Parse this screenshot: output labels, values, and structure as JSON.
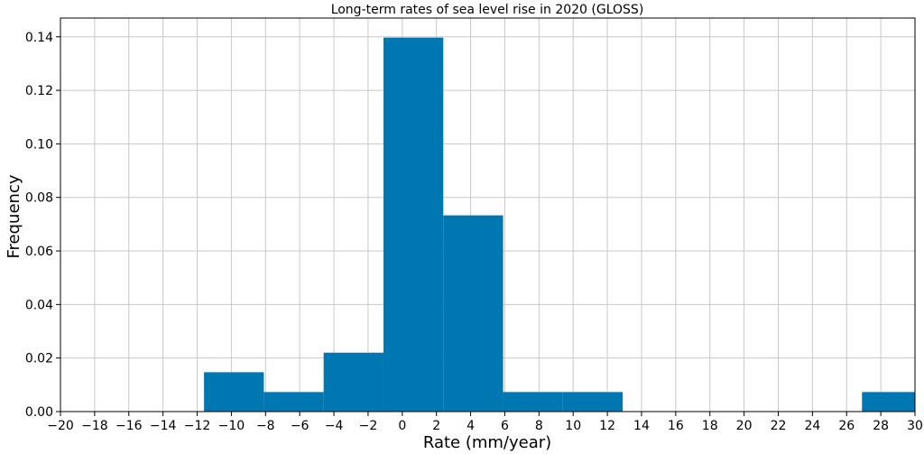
{
  "chart_data": {
    "type": "bar",
    "title": "Long-term rates of sea level rise in 2020 (GLOSS)",
    "xlabel": "Rate (mm/year)",
    "ylabel": "Frequency",
    "xlim": [
      -20,
      30
    ],
    "ylim": [
      0,
      0.147
    ],
    "xticks": [
      -20,
      -18,
      -16,
      -14,
      -12,
      -10,
      -8,
      -6,
      -4,
      -2,
      0,
      2,
      4,
      6,
      8,
      10,
      12,
      14,
      16,
      18,
      20,
      22,
      24,
      26,
      28,
      30
    ],
    "xtick_labels": [
      "−20",
      "−18",
      "−16",
      "−14",
      "−12",
      "−10",
      "−8",
      "−6",
      "−4",
      "−2",
      "0",
      "2",
      "4",
      "6",
      "8",
      "10",
      "12",
      "14",
      "16",
      "18",
      "20",
      "22",
      "24",
      "26",
      "28",
      "30"
    ],
    "yticks": [
      0.0,
      0.02,
      0.04,
      0.06,
      0.08,
      0.1,
      0.12,
      0.14
    ],
    "ytick_labels": [
      "0.00",
      "0.02",
      "0.04",
      "0.06",
      "0.08",
      "0.10",
      "0.12",
      "0.14"
    ],
    "grid": true,
    "bar_color": "#0077b0",
    "bins": [
      {
        "x0": -11.6,
        "x1": -8.1,
        "value": 0.0147
      },
      {
        "x0": -8.1,
        "x1": -4.6,
        "value": 0.0073
      },
      {
        "x0": -4.6,
        "x1": -1.1,
        "value": 0.022
      },
      {
        "x0": -1.1,
        "x1": 2.4,
        "value": 0.1397
      },
      {
        "x0": 2.4,
        "x1": 5.9,
        "value": 0.0733
      },
      {
        "x0": 5.9,
        "x1": 9.4,
        "value": 0.0073
      },
      {
        "x0": 9.4,
        "x1": 12.9,
        "value": 0.0073
      },
      {
        "x0": 26.9,
        "x1": 30.4,
        "value": 0.0073
      }
    ]
  }
}
